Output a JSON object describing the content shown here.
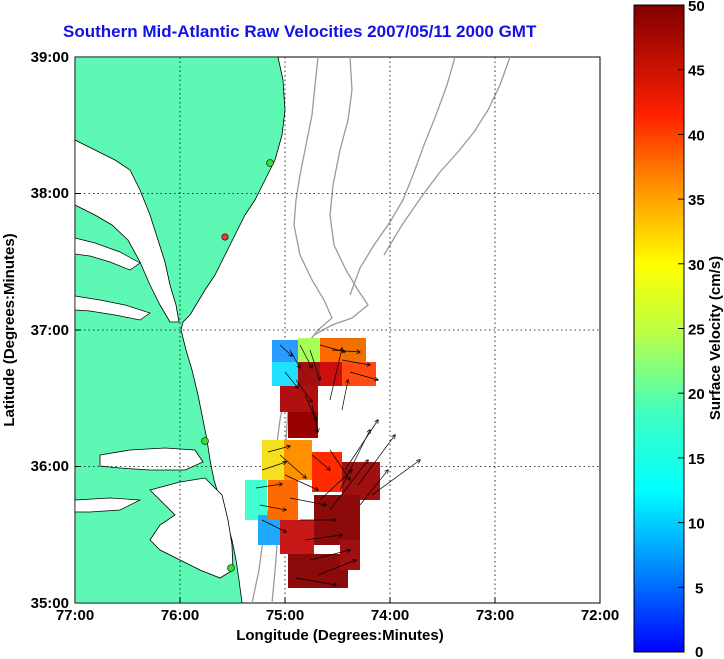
{
  "title": "Southern Mid-Atlantic Raw Velocities 2007/05/11 2000 GMT",
  "x_axis": {
    "label": "Longitude (Degrees:Minutes)",
    "ticks": [
      "77:00",
      "76:00",
      "75:00",
      "74:00",
      "73:00",
      "72:00"
    ]
  },
  "y_axis": {
    "label": "Latitude (Degrees:Minutes)",
    "ticks": [
      "39:00",
      "38:00",
      "37:00",
      "36:00",
      "35:00"
    ]
  },
  "colorbar": {
    "label": "Surface Velocity (cm/s)",
    "ticks": [
      "50",
      "45",
      "40",
      "35",
      "30",
      "25",
      "20",
      "15",
      "10",
      "5",
      "0"
    ],
    "min": 0,
    "max": 50,
    "colormap": "jet"
  },
  "colors": {
    "title": "#1212e6",
    "land": "#5cf8b4",
    "coastline": "#000000",
    "bathymetry": "#9a9a9a",
    "gridlines": "#000000",
    "station_marker": "#33dd33",
    "station_marker_alt": "#ff3333"
  },
  "map_extent": {
    "lon_west": -77,
    "lon_east": -72,
    "lat_south": 35,
    "lat_north": 39
  },
  "stations": [
    {
      "lon": -75.15,
      "lat": 38.25,
      "color": "green"
    },
    {
      "lon": -75.48,
      "lat": 37.68,
      "color": "red"
    },
    {
      "lon": -75.67,
      "lat": 36.18,
      "color": "green"
    },
    {
      "lon": -75.5,
      "lat": 35.22,
      "color": "green"
    }
  ],
  "grid": true
}
